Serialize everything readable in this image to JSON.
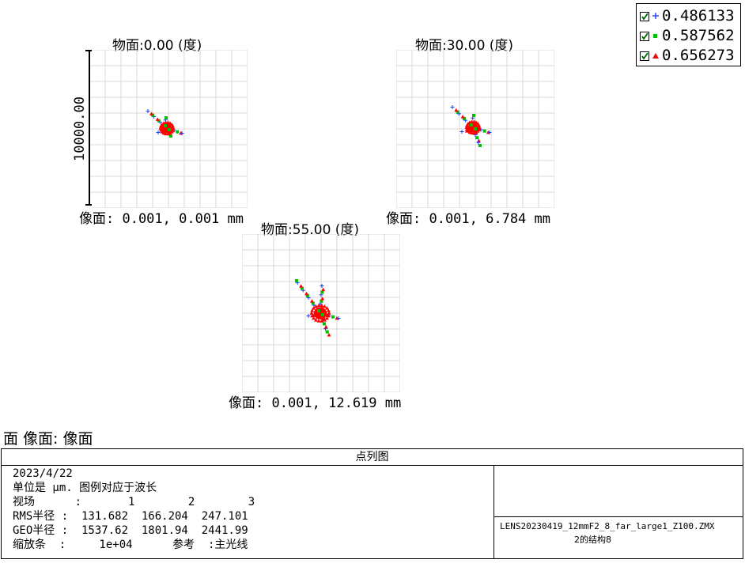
{
  "legend": {
    "items": [
      {
        "label": "0.486133",
        "marker": "+",
        "color": "#1e3cff"
      },
      {
        "label": "0.587562",
        "marker": "square",
        "color": "#00c000"
      },
      {
        "label": "0.656273",
        "marker": "triangle",
        "color": "#ff0000"
      }
    ]
  },
  "chart_data": {
    "type": "scatter",
    "title": "点列图",
    "scale_bar_label": "10000.00",
    "unit": "mm",
    "grid": true,
    "fields": [
      {
        "title": "物面:0.00 (度)",
        "image_label": "像面: 0.001, 0.001 mm"
      },
      {
        "title": "物面:30.00 (度)",
        "image_label": "像面: 0.001, 6.784 mm"
      },
      {
        "title": "物面:55.00 (度)",
        "image_label": "像面: 0.001, 12.619 mm"
      }
    ]
  },
  "stray_label": "面 像面: 像面",
  "panel": {
    "title": "点列图",
    "date": "2023/4/22",
    "units_line": "单位是 μm. 图例对应于波长",
    "field_row": "视场      :       1        2        3",
    "rms_row": "RMS半径 :  131.682  166.204  247.101",
    "geo_row": "GEO半径 :  1537.62  1801.94  2441.99",
    "scale_row": "缩放条  :     1e+04      参考  :主光线",
    "lens_file": "LENS20230419_12mmF2_8_far_large1_Z100.ZMX",
    "config": "2的结构8"
  }
}
